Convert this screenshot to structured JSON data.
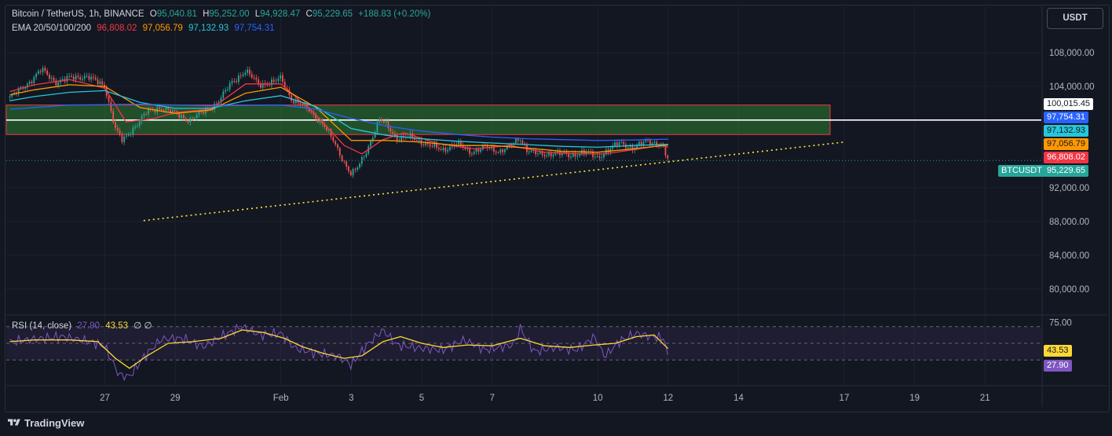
{
  "header": {
    "symbol": "Bitcoin / TetherUS, 1h, BINANCE",
    "open_label": "O",
    "open": "95,040.81",
    "high_label": "H",
    "high": "95,252.00",
    "low_label": "L",
    "low": "94,928.47",
    "close_label": "C",
    "close": "95,229.65",
    "change": "+188.83 (+0.20%)",
    "ema_label": "EMA 20/50/100/200",
    "ema20": "96,808.02",
    "ema50": "97,056.79",
    "ema100": "97,132.93",
    "ema200": "97,754.31",
    "rsi_label": "RSI (14, close)",
    "rsi_value": "27.90",
    "rsi_ma": "43.53",
    "rsi_extra": "∅ ∅"
  },
  "unit_button": "USDT",
  "colors": {
    "background": "#131722",
    "up": "#26a69a",
    "down": "#ef5350",
    "ema20": "#f23645",
    "ema50": "#ff9800",
    "ema100": "#26c6da",
    "ema200": "#2962ff",
    "zone_fill": "#2e7d32",
    "zone_border": "#f23645",
    "trendline": "#ffeb3b",
    "rsi_line": "#7e57c2",
    "rsi_ma": "#fdd835"
  },
  "price_labels": {
    "resistance": "100,015.45",
    "ema200": "97,754.31",
    "ema100": "97,132.93",
    "ema50": "97,056.79",
    "ema20": "96,808.02",
    "symbol_tag": "BTCUSDT",
    "last": "95,229.65",
    "rsi_ma": "43.53",
    "rsi": "27.90"
  },
  "footer": {
    "brand": "TradingView"
  },
  "chart_data": [
    {
      "type": "candlestick",
      "title": "Bitcoin / TetherUS, 1h, BINANCE",
      "y_ticks": [
        80000,
        84000,
        88000,
        92000,
        104000,
        108000
      ],
      "y_tick_labels": [
        "80,000.00",
        "84,000.00",
        "88,000.00",
        "92,000.00",
        "104,000.00",
        "108,000.00"
      ],
      "ylim": [
        77000,
        113500
      ],
      "x_ticks": [
        {
          "label": "27",
          "day": 27
        },
        {
          "label": "29",
          "day": 29
        },
        {
          "label": "Feb",
          "day": 32
        },
        {
          "label": "3",
          "day": 34
        },
        {
          "label": "5",
          "day": 36
        },
        {
          "label": "7",
          "day": 38
        },
        {
          "label": "10",
          "day": 41
        },
        {
          "label": "12",
          "day": 43
        },
        {
          "label": "14",
          "day": 45
        },
        {
          "label": "17",
          "day": 48
        },
        {
          "label": "19",
          "day": 50
        },
        {
          "label": "21",
          "day": 52
        }
      ],
      "xlim_days": [
        24.2,
        53.6
      ],
      "price_path": [
        [
          24.3,
          102700
        ],
        [
          24.8,
          104300
        ],
        [
          25.2,
          106000
        ],
        [
          25.6,
          104500
        ],
        [
          26.0,
          105000
        ],
        [
          26.5,
          105200
        ],
        [
          27.0,
          104000
        ],
        [
          27.3,
          99000
        ],
        [
          27.5,
          97500
        ],
        [
          27.8,
          99000
        ],
        [
          28.2,
          101000
        ],
        [
          28.6,
          101500
        ],
        [
          29.0,
          100800
        ],
        [
          29.4,
          100000
        ],
        [
          29.8,
          101000
        ],
        [
          30.2,
          102000
        ],
        [
          30.6,
          104500
        ],
        [
          31.0,
          105800
        ],
        [
          31.4,
          104200
        ],
        [
          31.8,
          104500
        ],
        [
          32.0,
          105000
        ],
        [
          32.3,
          102500
        ],
        [
          32.8,
          101200
        ],
        [
          33.2,
          99500
        ],
        [
          33.5,
          97500
        ],
        [
          33.8,
          95000
        ],
        [
          34.0,
          93500
        ],
        [
          34.2,
          94500
        ],
        [
          34.5,
          97000
        ],
        [
          34.8,
          100000
        ],
        [
          35.0,
          99500
        ],
        [
          35.3,
          97800
        ],
        [
          35.7,
          98000
        ],
        [
          36.2,
          97000
        ],
        [
          36.6,
          96500
        ],
        [
          37.0,
          97200
        ],
        [
          37.4,
          96200
        ],
        [
          37.8,
          96800
        ],
        [
          38.2,
          96300
        ],
        [
          38.6,
          97200
        ],
        [
          38.8,
          97800
        ],
        [
          39.0,
          96500
        ],
        [
          39.4,
          95800
        ],
        [
          39.8,
          96200
        ],
        [
          40.2,
          95700
        ],
        [
          40.6,
          96300
        ],
        [
          41.0,
          95500
        ],
        [
          41.2,
          96200
        ],
        [
          41.6,
          97300
        ],
        [
          42.0,
          96700
        ],
        [
          42.4,
          97500
        ],
        [
          42.8,
          97200
        ],
        [
          43.0,
          95230
        ]
      ],
      "series": [
        {
          "name": "EMA 20",
          "path": [
            [
              24.3,
              103400
            ],
            [
              25,
              104200
            ],
            [
              26,
              104800
            ],
            [
              27,
              103800
            ],
            [
              27.6,
              99800
            ],
            [
              28.4,
              100200
            ],
            [
              29,
              100900
            ],
            [
              30,
              101300
            ],
            [
              31,
              104300
            ],
            [
              32,
              104300
            ],
            [
              33,
              100600
            ],
            [
              33.8,
              97000
            ],
            [
              34.3,
              96000
            ],
            [
              34.9,
              97700
            ],
            [
              35.5,
              98500
            ],
            [
              36.5,
              97200
            ],
            [
              37.5,
              96600
            ],
            [
              38.5,
              97000
            ],
            [
              39.5,
              96200
            ],
            [
              40.5,
              96000
            ],
            [
              41.2,
              96000
            ],
            [
              42,
              96500
            ],
            [
              42.8,
              97000
            ],
            [
              43.0,
              96808
            ]
          ]
        },
        {
          "name": "EMA 50",
          "path": [
            [
              24.3,
              103000
            ],
            [
              25,
              103600
            ],
            [
              26,
              104200
            ],
            [
              27,
              104000
            ],
            [
              28,
              101500
            ],
            [
              29,
              100800
            ],
            [
              30,
              101200
            ],
            [
              31,
              103200
            ],
            [
              32,
              103900
            ],
            [
              33,
              101500
            ],
            [
              34,
              97600
            ],
            [
              35,
              97600
            ],
            [
              36,
              97400
            ],
            [
              37,
              97000
            ],
            [
              38,
              97000
            ],
            [
              39,
              96700
            ],
            [
              40,
              96300
            ],
            [
              41,
              96200
            ],
            [
              42,
              96600
            ],
            [
              43.0,
              97057
            ]
          ]
        },
        {
          "name": "EMA 100",
          "path": [
            [
              24.3,
              102300
            ],
            [
              25,
              102800
            ],
            [
              26,
              103300
            ],
            [
              27,
              103500
            ],
            [
              28,
              102100
            ],
            [
              29,
              101400
            ],
            [
              30,
              101400
            ],
            [
              31,
              102300
            ],
            [
              32,
              102900
            ],
            [
              33,
              101600
            ],
            [
              34,
              99000
            ],
            [
              35,
              98200
            ],
            [
              36,
              97800
            ],
            [
              37,
              97500
            ],
            [
              38,
              97300
            ],
            [
              39,
              97100
            ],
            [
              40,
              96900
            ],
            [
              41,
              96800
            ],
            [
              42,
              97000
            ],
            [
              43.0,
              97133
            ]
          ]
        },
        {
          "name": "EMA 200",
          "path": [
            [
              24.3,
              101300
            ],
            [
              26,
              101800
            ],
            [
              28,
              101900
            ],
            [
              30,
              101700
            ],
            [
              32,
              101800
            ],
            [
              33,
              101300
            ],
            [
              34,
              100200
            ],
            [
              35,
              99300
            ],
            [
              36,
              98700
            ],
            [
              37,
              98300
            ],
            [
              38,
              98000
            ],
            [
              39,
              97800
            ],
            [
              40,
              97700
            ],
            [
              41,
              97600
            ],
            [
              42,
              97650
            ],
            [
              43.0,
              97754
            ]
          ]
        }
      ],
      "zone": {
        "day_start": 24.2,
        "day_end": 47.6,
        "price_top": 101800,
        "price_bottom": 98300
      },
      "resistance_line": 100015.45,
      "trendline": {
        "from": {
          "day": 28.1,
          "price": 88100
        },
        "to": {
          "day": 48.0,
          "price": 97400
        }
      },
      "last_price": 95229.65
    },
    {
      "type": "line",
      "title": "RSI (14, close)",
      "y_ticks": [
        75
      ],
      "y_tick_labels": [
        "75.00"
      ],
      "ylim": [
        0,
        83
      ],
      "bands": {
        "upper": 70,
        "middle": 50,
        "lower": 30
      },
      "series": [
        {
          "name": "RSI",
          "path": [
            [
              24.3,
              52
            ],
            [
              25,
              55
            ],
            [
              25.8,
              58
            ],
            [
              26.6,
              52
            ],
            [
              27,
              46
            ],
            [
              27.4,
              12
            ],
            [
              27.7,
              10
            ],
            [
              28.1,
              33
            ],
            [
              28.6,
              55
            ],
            [
              29.2,
              56
            ],
            [
              29.8,
              46
            ],
            [
              30.4,
              60
            ],
            [
              30.9,
              70
            ],
            [
              31.4,
              60
            ],
            [
              32,
              62
            ],
            [
              32.4,
              44
            ],
            [
              33,
              38
            ],
            [
              33.6,
              35
            ],
            [
              34.0,
              24
            ],
            [
              34.4,
              46
            ],
            [
              34.9,
              66
            ],
            [
              35.3,
              48
            ],
            [
              36,
              44
            ],
            [
              36.6,
              42
            ],
            [
              37.2,
              54
            ],
            [
              37.8,
              42
            ],
            [
              38.6,
              48
            ],
            [
              38.8,
              68
            ],
            [
              39.2,
              40
            ],
            [
              39.8,
              45
            ],
            [
              40.4,
              42
            ],
            [
              40.9,
              58
            ],
            [
              41.2,
              34
            ],
            [
              41.6,
              52
            ],
            [
              42.1,
              62
            ],
            [
              42.5,
              58
            ],
            [
              42.9,
              56
            ],
            [
              43.0,
              28
            ]
          ]
        },
        {
          "name": "RSI MA",
          "path": [
            [
              24.3,
              52
            ],
            [
              25,
              54
            ],
            [
              26,
              54
            ],
            [
              26.8,
              52
            ],
            [
              27.3,
              32
            ],
            [
              27.7,
              20
            ],
            [
              28.2,
              35
            ],
            [
              28.8,
              50
            ],
            [
              29.5,
              52
            ],
            [
              30.3,
              56
            ],
            [
              30.9,
              66
            ],
            [
              31.5,
              63
            ],
            [
              32.1,
              56
            ],
            [
              32.6,
              46
            ],
            [
              33.2,
              38
            ],
            [
              33.8,
              32
            ],
            [
              34.3,
              35
            ],
            [
              34.9,
              52
            ],
            [
              35.4,
              58
            ],
            [
              36,
              50
            ],
            [
              36.6,
              45
            ],
            [
              37.3,
              48
            ],
            [
              38,
              47
            ],
            [
              38.8,
              56
            ],
            [
              39.5,
              47
            ],
            [
              40.2,
              45
            ],
            [
              40.9,
              48
            ],
            [
              41.5,
              50
            ],
            [
              42.1,
              58
            ],
            [
              42.6,
              60
            ],
            [
              43.0,
              43.53
            ]
          ]
        }
      ]
    }
  ]
}
